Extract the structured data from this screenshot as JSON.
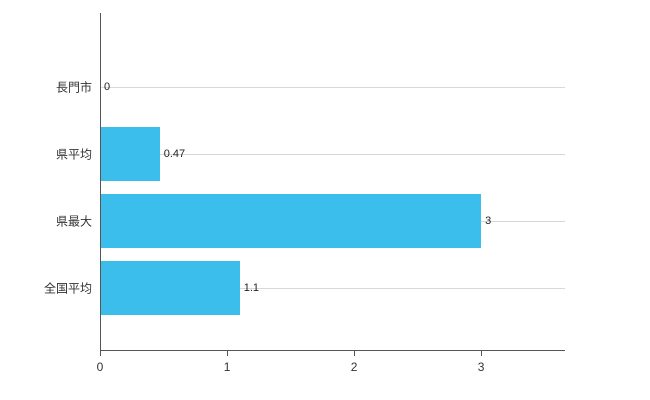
{
  "chart_data": {
    "type": "bar",
    "orientation": "horizontal",
    "title": "",
    "categories": [
      "長門市",
      "県平均",
      "県最大",
      "全国平均"
    ],
    "values": [
      0,
      0.47,
      3,
      1.1
    ],
    "value_labels": [
      "0",
      "0.47",
      "3",
      "1.1"
    ],
    "x_ticks": [
      0,
      1,
      2,
      3
    ],
    "x_tick_labels": [
      "0",
      "1",
      "2",
      "3"
    ],
    "xlim": [
      0,
      3.66
    ],
    "bar_color": "#3BBEEB",
    "grid": true,
    "legend": "none",
    "background": "#FFFFFF"
  }
}
